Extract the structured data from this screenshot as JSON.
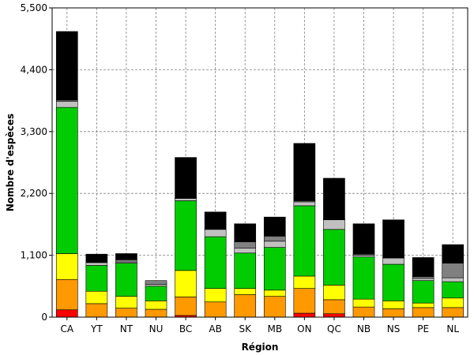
{
  "chart_data": {
    "type": "bar",
    "stacked": true,
    "title": "",
    "xlabel": "Région",
    "ylabel": "Nombre d'espèces",
    "ylim": [
      0,
      5500
    ],
    "yticks": [
      0,
      1100,
      2200,
      3300,
      4400,
      5500
    ],
    "ytick_labels": [
      "0",
      "1,100",
      "2,200",
      "3,300",
      "4,400",
      "5,500"
    ],
    "grid": true,
    "legend": "none",
    "categories": [
      "CA",
      "YT",
      "NT",
      "NU",
      "BC",
      "AB",
      "SK",
      "MB",
      "ON",
      "QC",
      "NB",
      "NS",
      "PE",
      "NL"
    ],
    "series": [
      {
        "color": "#ff0000",
        "values": [
          130,
          0,
          0,
          0,
          30,
          0,
          0,
          0,
          70,
          60,
          0,
          0,
          0,
          0
        ]
      },
      {
        "color": "#ff9900",
        "values": [
          540,
          240,
          160,
          140,
          330,
          270,
          400,
          370,
          440,
          250,
          180,
          150,
          170,
          170
        ]
      },
      {
        "color": "#ffff00",
        "values": [
          460,
          220,
          210,
          150,
          470,
          240,
          110,
          110,
          220,
          260,
          140,
          140,
          80,
          170
        ]
      },
      {
        "color": "#00cc00",
        "values": [
          2600,
          460,
          590,
          260,
          1240,
          920,
          630,
          760,
          1250,
          990,
          750,
          650,
          400,
          290
        ]
      },
      {
        "color": "#c0c0c0",
        "values": [
          110,
          50,
          20,
          30,
          40,
          130,
          90,
          110,
          70,
          170,
          30,
          110,
          40,
          70
        ]
      },
      {
        "color": "#808080",
        "values": [
          20,
          0,
          40,
          70,
          10,
          0,
          110,
          90,
          20,
          10,
          20,
          0,
          30,
          260
        ]
      },
      {
        "color": "#000000",
        "values": [
          1220,
          150,
          110,
          0,
          720,
          310,
          320,
          340,
          1020,
          730,
          540,
          680,
          340,
          330
        ]
      }
    ]
  }
}
